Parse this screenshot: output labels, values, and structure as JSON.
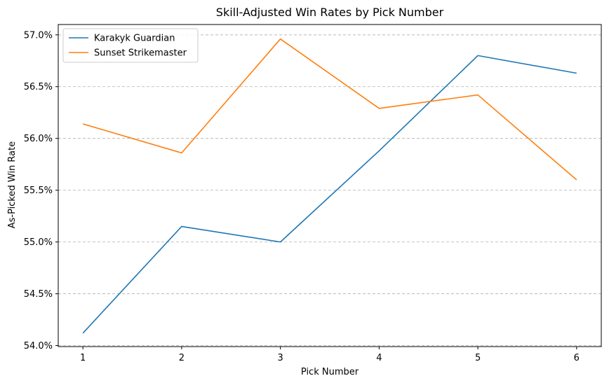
{
  "chart_data": {
    "type": "line",
    "title": "Skill-Adjusted Win Rates by Pick Number",
    "xlabel": "Pick Number",
    "ylabel": "As-Picked Win Rate",
    "x": [
      1,
      2,
      3,
      4,
      5,
      6
    ],
    "x_ticks": [
      "1",
      "2",
      "3",
      "4",
      "5",
      "6"
    ],
    "y_ticks": [
      "54.0%",
      "54.5%",
      "55.0%",
      "55.5%",
      "56.0%",
      "56.5%",
      "57.0%"
    ],
    "y_tick_values": [
      54.0,
      54.5,
      55.0,
      55.5,
      56.0,
      56.5,
      57.0
    ],
    "xlim": [
      0.75,
      6.25
    ],
    "ylim": [
      53.99,
      57.1
    ],
    "grid": "horizontal dashed",
    "legend_position": "top-left",
    "series": [
      {
        "name": "Karakyk Guardian",
        "color": "#1f77b4",
        "values": [
          54.12,
          55.15,
          55.0,
          55.88,
          56.8,
          56.63
        ]
      },
      {
        "name": "Sunset Strikemaster",
        "color": "#ff7f0e",
        "values": [
          56.14,
          55.86,
          56.96,
          56.29,
          56.42,
          55.6
        ]
      }
    ]
  }
}
